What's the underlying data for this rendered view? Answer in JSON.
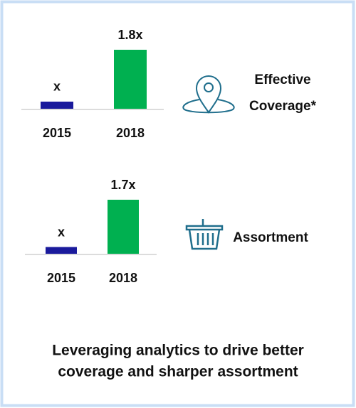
{
  "chart_data": [
    {
      "type": "bar",
      "categories": [
        "2015",
        "2018"
      ],
      "values": [
        1,
        1.8
      ],
      "value_labels": [
        "x",
        "1.8x"
      ],
      "colors": [
        "#1a1a9c",
        "#00b050"
      ],
      "ylim": [
        0.89,
        1.8
      ],
      "label": [
        "Effective",
        "Coverage*"
      ]
    },
    {
      "type": "bar",
      "categories": [
        "2015",
        "2018"
      ],
      "values": [
        1,
        1.7
      ],
      "value_labels": [
        "x",
        "1.7x"
      ],
      "colors": [
        "#1a1a9c",
        "#00b050"
      ],
      "ylim": [
        0.9,
        1.7
      ],
      "label": [
        "Assortment"
      ]
    }
  ],
  "caption": [
    "Leveraging analytics to drive better",
    "coverage and sharper assortment"
  ]
}
